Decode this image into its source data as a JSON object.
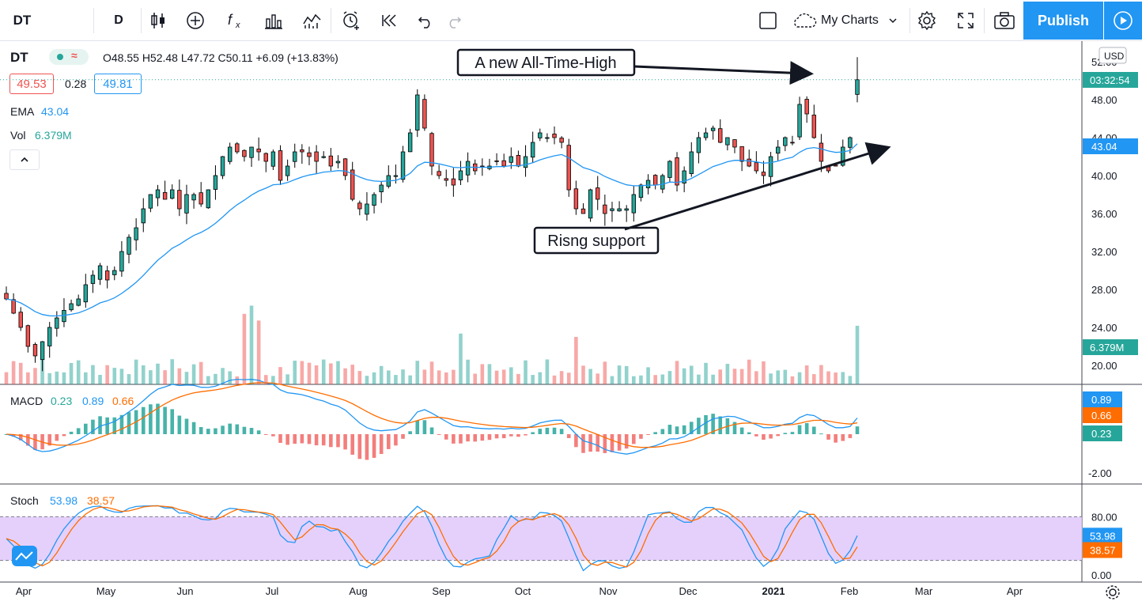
{
  "toolbar": {
    "symbol": "DT",
    "interval": "D",
    "my_charts": "My Charts",
    "publish": "Publish",
    "icons": [
      "candles-icon",
      "add-indicator-icon",
      "fx-icon",
      "bar-chart-icon",
      "templates-icon",
      "alert-icon",
      "replay-icon",
      "undo-icon",
      "redo-icon",
      "layout-icon",
      "cloud-icon",
      "settings-icon",
      "fullscreen-icon",
      "camera-icon",
      "play-icon"
    ]
  },
  "legend": {
    "symbol": "DT",
    "ohlc": "O48.55 H52.48 L47.72 C50.11 +6.09 (+13.83%)",
    "bid": "49.53",
    "spread": "0.28",
    "ask": "49.81",
    "ema_label": "EMA",
    "ema_value": "43.04",
    "vol_label": "Vol",
    "vol_value": "6.379M"
  },
  "axis": {
    "currency": "USD",
    "countdown": "03:32:54",
    "price_ticks": [
      "52.00",
      "48.00",
      "44.00",
      "40.00",
      "36.00",
      "32.00",
      "28.00",
      "24.00",
      "20.00"
    ],
    "ema_tag": "43.04",
    "vol_tag": "6.379M",
    "macd_tags": [
      "0.89",
      "0.66",
      "0.23"
    ],
    "macd_tick": "-2.00",
    "stoch_ticks": [
      "80.00",
      "0.00"
    ],
    "stoch_tags": [
      "53.98",
      "38.57"
    ],
    "months": [
      "Apr",
      "May",
      "Jun",
      "Jul",
      "Aug",
      "Sep",
      "Oct",
      "Nov",
      "Dec",
      "2021",
      "Feb",
      "Mar",
      "Apr"
    ]
  },
  "macd": {
    "label": "MACD",
    "v1": "0.23",
    "v2": "0.89",
    "v3": "0.66"
  },
  "stoch": {
    "label": "Stoch",
    "k": "53.98",
    "d": "38.57"
  },
  "annotations": {
    "ath": "A new All-Time-High",
    "support": "Risng support"
  },
  "colors": {
    "up": "#26a69a",
    "down": "#ef5350",
    "ema": "#2196f3",
    "signal": "#ff6d00",
    "stoch_band": "#e1c8fb",
    "accent": "#2196f3"
  },
  "chart_data": {
    "type": "candlestick",
    "symbol": "DT",
    "interval": "D",
    "ylim": [
      18.5,
      53.5
    ],
    "xlabels": [
      "Apr",
      "May",
      "Jun",
      "Jul",
      "Aug",
      "Sep",
      "Oct",
      "Nov",
      "Dec",
      "2021",
      "Feb",
      "Mar",
      "Apr"
    ],
    "close_approx": [
      27.0,
      25.5,
      24.0,
      22.0,
      21.0,
      22.5,
      24.0,
      25.0,
      25.8,
      26.5,
      27.0,
      28.5,
      29.5,
      30.5,
      29.0,
      30.0,
      32.0,
      33.5,
      34.5,
      36.5,
      38.0,
      38.5,
      37.5,
      38.5,
      36.5,
      38.0,
      38.0,
      37.0,
      38.5,
      40.0,
      42.0,
      43.0,
      42.5,
      42.0,
      43.0,
      42.5,
      41.5,
      42.5,
      39.5,
      41.0,
      42.5,
      42.5,
      42.0,
      41.5,
      42.0,
      41.0,
      41.5,
      40.0,
      37.5,
      36.5,
      37.0,
      38.0,
      39.0,
      40.0,
      40.0,
      42.5,
      44.5,
      48.5,
      45.0,
      41.0,
      40.0,
      39.5,
      39.0,
      40.5,
      41.5,
      40.5,
      41.0,
      41.0,
      41.5,
      41.0,
      42.0,
      41.0,
      42.0,
      43.5,
      44.5,
      44.0,
      44.0,
      43.5,
      38.5,
      36.5,
      36.0,
      38.5,
      37.5,
      36.0,
      36.5,
      36.5,
      36.5,
      38.0,
      39.0,
      39.5,
      39.0,
      40.0,
      41.5,
      39.0,
      40.5,
      42.5,
      44.0,
      44.5,
      45.0,
      43.5,
      44.0,
      43.0,
      41.5,
      41.0,
      40.5,
      40.0,
      42.0,
      43.0,
      44.0,
      43.5,
      47.5,
      46.5,
      44.0,
      41.5,
      40.5,
      41.0,
      43.0,
      44.0,
      50.1
    ],
    "ema": 43.04,
    "volume_last": "6.379M",
    "macd": {
      "macd": 0.89,
      "signal": 0.66,
      "hist": 0.23
    },
    "stoch": {
      "k": 53.98,
      "d": 38.57,
      "bands": [
        20,
        80
      ]
    }
  }
}
